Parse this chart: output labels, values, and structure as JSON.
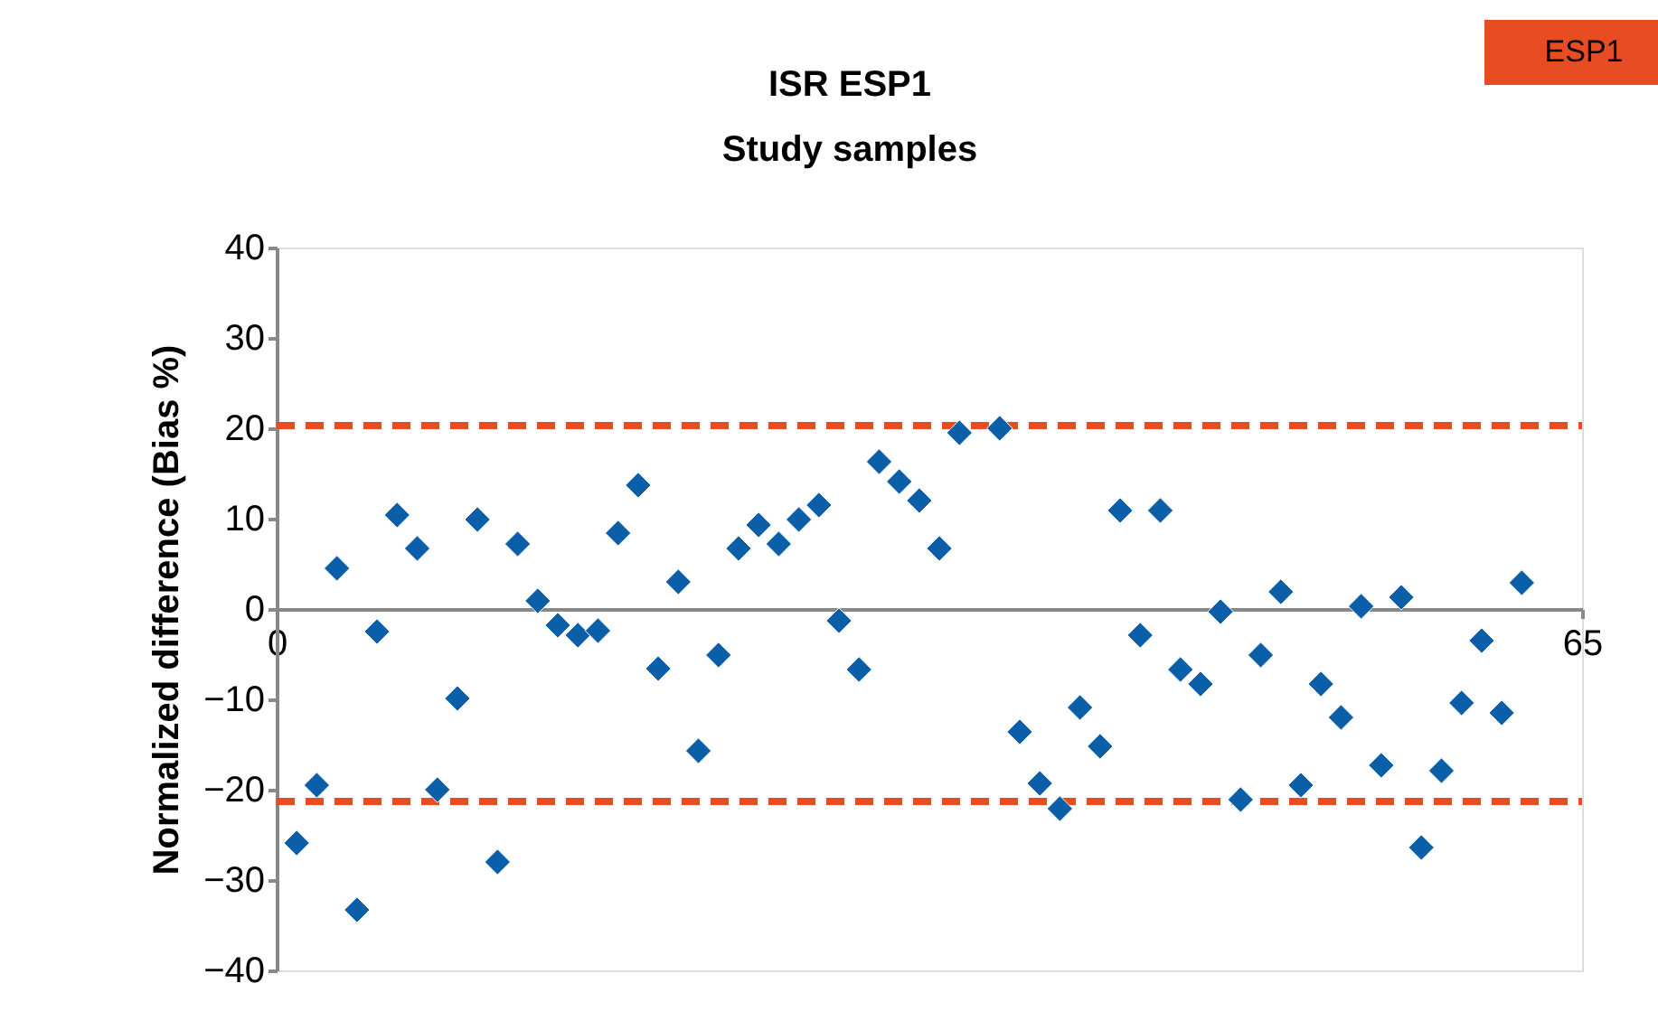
{
  "chart_data": {
    "type": "scatter",
    "title": "ISR ESP1",
    "subtitle": "Study samples",
    "ylabel": "Normalized difference (Bias  %)",
    "x": [
      1,
      2,
      3,
      4,
      5,
      6,
      7,
      8,
      9,
      10,
      11,
      12,
      13,
      14,
      15,
      16,
      17,
      18,
      19,
      20,
      21,
      22,
      23,
      24,
      25,
      26,
      27,
      28,
      29,
      30,
      31,
      32,
      33,
      34,
      36,
      37,
      38,
      39,
      40,
      41,
      42,
      43,
      44,
      45,
      46,
      47,
      48,
      49,
      50,
      51,
      52,
      53,
      54,
      55,
      56,
      57,
      58,
      59,
      60,
      61,
      62
    ],
    "series": [
      {
        "color": "#0a5fa8",
        "values": [
          -25.9,
          -19.5,
          4.5,
          -33.3,
          -2.5,
          10.4,
          6.7,
          -20,
          -9.9,
          9.9,
          -28,
          7.2,
          0.9,
          -1.8,
          -2.9,
          -2.4,
          8.4,
          13.7,
          -6.6,
          3,
          -15.7,
          -5.1,
          6.7,
          9.3,
          7.2,
          9.9,
          11.5,
          -1.3,
          -6.7,
          16.3,
          14.1,
          12,
          6.7,
          19.5,
          20,
          -13.6,
          -19.3,
          -22.1,
          -10.9,
          -15.2,
          10.9,
          -2.9,
          10.9,
          -6.7,
          -8.3,
          -0.3,
          -21.1,
          -5.1,
          1.9,
          -19.5,
          -8.3,
          -12,
          0.3,
          -17.3,
          1.3,
          -26.4,
          -17.9,
          -10.4,
          -3.5,
          -11.5,
          2.9
        ]
      }
    ],
    "marker": "diamond",
    "xlim": [
      0,
      65
    ],
    "xticks": [
      0,
      65
    ],
    "ylim": [
      -40,
      40
    ],
    "yticks": [
      -40,
      -30,
      -20,
      -10,
      0,
      10,
      20,
      30,
      40
    ],
    "grid": false,
    "ref_lines": [
      {
        "axis": "y",
        "value": 20.3,
        "color": "#e84c22",
        "line_style": "dashed"
      },
      {
        "axis": "y",
        "value": -21.3,
        "color": "#e84c22",
        "line_style": "dashed"
      }
    ],
    "annotations": [
      "ESP1"
    ]
  }
}
